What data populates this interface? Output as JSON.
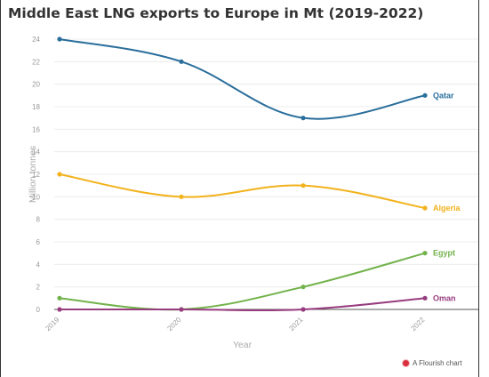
{
  "title": "Middle East LNG exports to Europe in Mt (2019-2022)",
  "credit": {
    "label": "A Flourish chart",
    "icon": "flourish-logo-icon"
  },
  "colors": {
    "Qatar": "#2a6e9c",
    "Algeria": "#f2b21c",
    "Egypt": "#72b24b",
    "Oman": "#973c7e",
    "grid": "#ececec",
    "axis": "#555555"
  },
  "chart_data": {
    "type": "line",
    "title": "Middle East LNG exports to Europe in Mt (2019-2022)",
    "xlabel": "Year",
    "ylabel": "Million tonnes",
    "x": [
      "2019",
      "2020",
      "2021",
      "2022"
    ],
    "ylim": [
      0,
      24
    ],
    "yticks": [
      0,
      2,
      4,
      6,
      8,
      10,
      12,
      14,
      16,
      18,
      20,
      22,
      24
    ],
    "grid": true,
    "legend": "series labels at line ends (right)",
    "series": [
      {
        "name": "Qatar",
        "values": [
          24,
          22,
          17,
          19
        ]
      },
      {
        "name": "Algeria",
        "values": [
          12,
          10,
          11,
          9
        ]
      },
      {
        "name": "Egypt",
        "values": [
          1,
          0,
          2,
          5
        ]
      },
      {
        "name": "Oman",
        "values": [
          0,
          0,
          0,
          1
        ]
      }
    ]
  }
}
